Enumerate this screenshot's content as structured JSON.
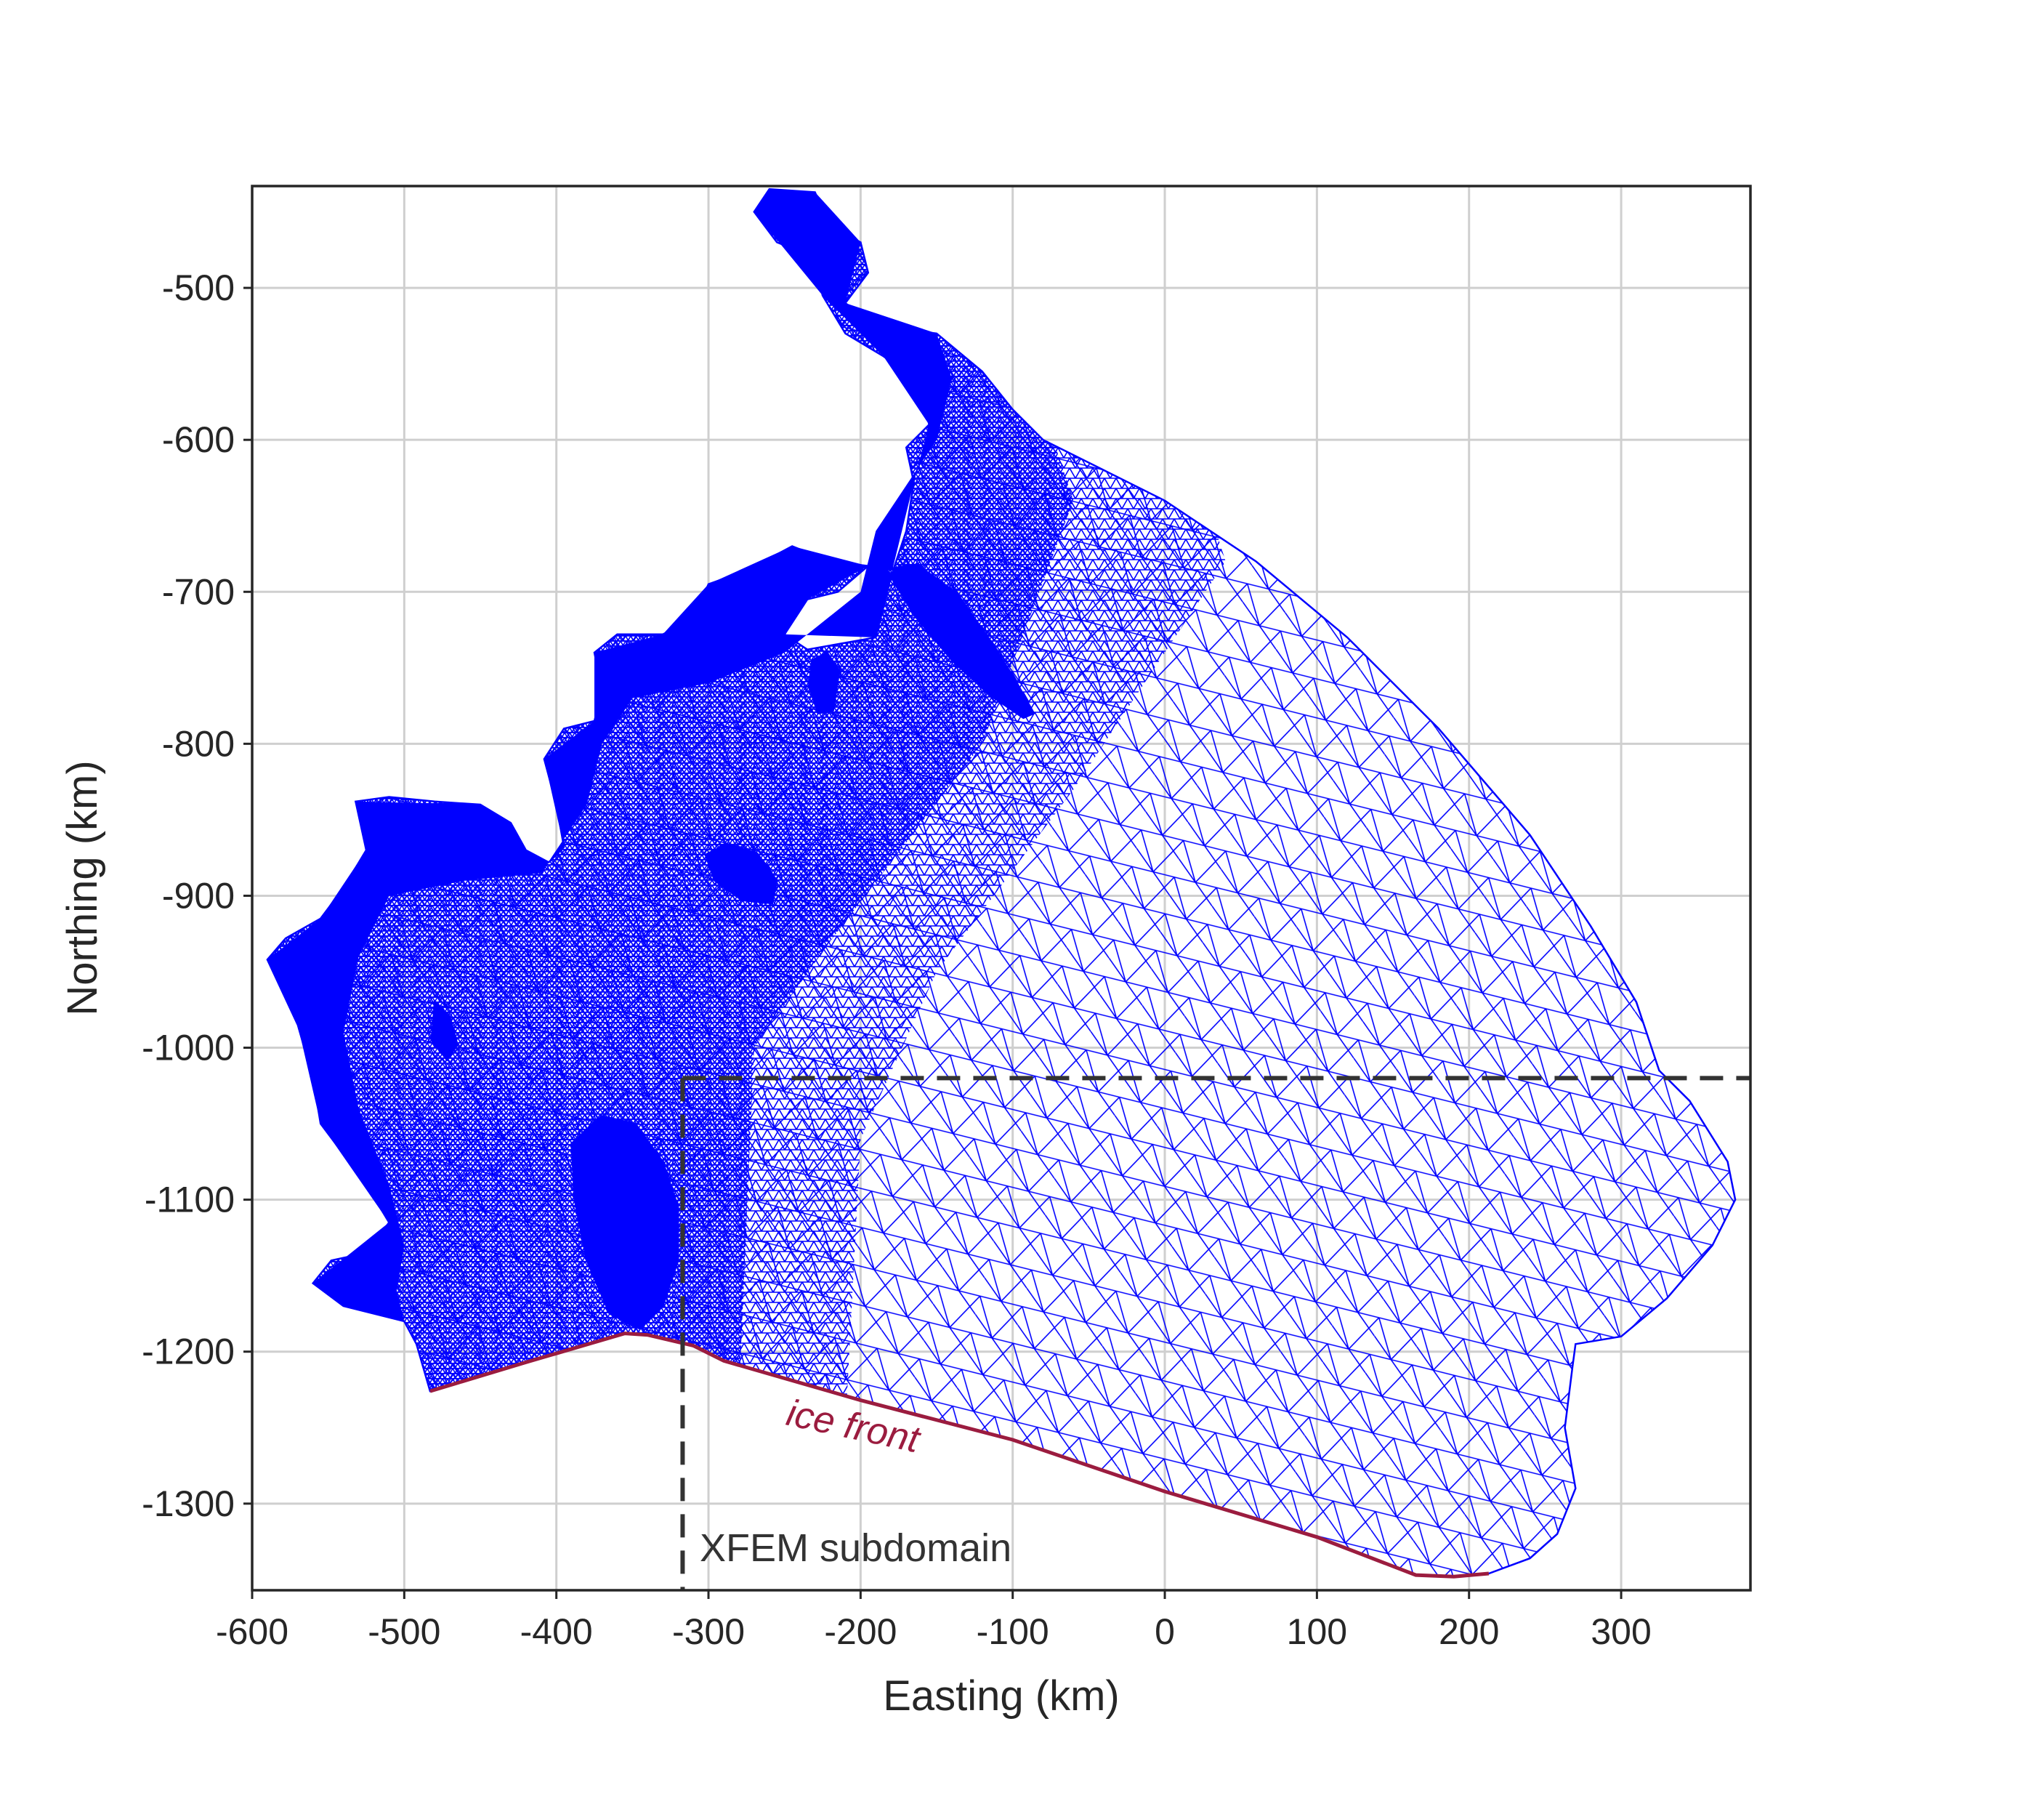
{
  "chart_data": {
    "type": "mesh",
    "xlabel": "Easting (km)",
    "ylabel": "Northing (km)",
    "xlim": [
      -600,
      385
    ],
    "ylim": [
      -1357,
      -433
    ],
    "xticks": [
      -600,
      -500,
      -400,
      -300,
      -200,
      -100,
      0,
      100,
      200,
      300
    ],
    "yticks": [
      -500,
      -600,
      -700,
      -800,
      -900,
      -1000,
      -1100,
      -1200,
      -1300
    ],
    "grid": true,
    "mesh_color": "#0000ff",
    "ice_front": {
      "label": "ice front",
      "color": "#9b1c3f",
      "points": [
        [
          -483,
          -1226
        ],
        [
          -420,
          -1207
        ],
        [
          -355,
          -1188
        ],
        [
          -340,
          -1189
        ],
        [
          -310,
          -1196
        ],
        [
          -290,
          -1206
        ],
        [
          -200,
          -1232
        ],
        [
          -100,
          -1258
        ],
        [
          0,
          -1292
        ],
        [
          100,
          -1322
        ],
        [
          165,
          -1347
        ],
        [
          190,
          -1348
        ],
        [
          213,
          -1346
        ]
      ]
    },
    "xfem_subdomain": {
      "label": "XFEM subdomain",
      "x": -317,
      "y": -1020,
      "color": "#333333"
    },
    "domain_outline": [
      [
        -483,
        -1226
      ],
      [
        -492,
        -1195
      ],
      [
        -500,
        -1180
      ],
      [
        -540,
        -1170
      ],
      [
        -560,
        -1155
      ],
      [
        -548,
        -1140
      ],
      [
        -525,
        -1135
      ],
      [
        -510,
        -1115
      ],
      [
        -525,
        -1090
      ],
      [
        -555,
        -1050
      ],
      [
        -560,
        -1020
      ],
      [
        -570,
        -985
      ],
      [
        -590,
        -942
      ],
      [
        -578,
        -928
      ],
      [
        -555,
        -915
      ],
      [
        -540,
        -895
      ],
      [
        -525,
        -870
      ],
      [
        -532,
        -838
      ],
      [
        -510,
        -835
      ],
      [
        -480,
        -838
      ],
      [
        -450,
        -840
      ],
      [
        -430,
        -852
      ],
      [
        -420,
        -870
      ],
      [
        -405,
        -878
      ],
      [
        -395,
        -868
      ],
      [
        -400,
        -840
      ],
      [
        -408,
        -810
      ],
      [
        -395,
        -790
      ],
      [
        -375,
        -785
      ],
      [
        -370,
        -765
      ],
      [
        -375,
        -740
      ],
      [
        -360,
        -728
      ],
      [
        -330,
        -728
      ],
      [
        -310,
        -718
      ],
      [
        -300,
        -695
      ],
      [
        -275,
        -686
      ],
      [
        -245,
        -670
      ],
      [
        -220,
        -680
      ],
      [
        -195,
        -683
      ],
      [
        -215,
        -700
      ],
      [
        -235,
        -705
      ],
      [
        -250,
        -728
      ],
      [
        -235,
        -738
      ],
      [
        -190,
        -730
      ],
      [
        -180,
        -690
      ],
      [
        -170,
        -660
      ],
      [
        -165,
        -628
      ],
      [
        -170,
        -605
      ],
      [
        -155,
        -590
      ],
      [
        -160,
        -563
      ],
      [
        -185,
        -545
      ],
      [
        -210,
        -530
      ],
      [
        -225,
        -505
      ],
      [
        -230,
        -480
      ],
      [
        -255,
        -470
      ],
      [
        -270,
        -450
      ],
      [
        -260,
        -435
      ],
      [
        -230,
        -437
      ],
      [
        -220,
        -460
      ],
      [
        -200,
        -470
      ],
      [
        -195,
        -490
      ],
      [
        -210,
        -510
      ],
      [
        -190,
        -525
      ],
      [
        -150,
        -530
      ],
      [
        -120,
        -555
      ],
      [
        -100,
        -580
      ],
      [
        -80,
        -600
      ],
      [
        -40,
        -620
      ],
      [
        0,
        -640
      ],
      [
        60,
        -680
      ],
      [
        120,
        -730
      ],
      [
        180,
        -790
      ],
      [
        240,
        -860
      ],
      [
        280,
        -920
      ],
      [
        310,
        -970
      ],
      [
        325,
        -1015
      ],
      [
        345,
        -1035
      ],
      [
        370,
        -1075
      ],
      [
        375,
        -1100
      ],
      [
        360,
        -1130
      ],
      [
        330,
        -1165
      ],
      [
        300,
        -1190
      ],
      [
        270,
        -1195
      ],
      [
        268,
        -1210
      ],
      [
        263,
        -1250
      ],
      [
        270,
        -1290
      ],
      [
        258,
        -1320
      ],
      [
        240,
        -1336
      ],
      [
        213,
        -1346
      ],
      [
        190,
        -1348
      ],
      [
        165,
        -1347
      ],
      [
        100,
        -1322
      ],
      [
        0,
        -1292
      ],
      [
        -100,
        -1258
      ],
      [
        -200,
        -1232
      ],
      [
        -290,
        -1206
      ],
      [
        -310,
        -1196
      ],
      [
        -340,
        -1189
      ],
      [
        -355,
        -1188
      ],
      [
        -420,
        -1207
      ]
    ],
    "holes": [
      [
        [
          -390,
          -1063
        ],
        [
          -370,
          -1045
        ],
        [
          -348,
          -1050
        ],
        [
          -330,
          -1075
        ],
        [
          -320,
          -1105
        ],
        [
          -320,
          -1140
        ],
        [
          -330,
          -1170
        ],
        [
          -345,
          -1185
        ],
        [
          -365,
          -1175
        ],
        [
          -380,
          -1140
        ],
        [
          -388,
          -1100
        ]
      ],
      [
        [
          -302,
          -873
        ],
        [
          -288,
          -866
        ],
        [
          -268,
          -872
        ],
        [
          -255,
          -890
        ],
        [
          -258,
          -905
        ],
        [
          -278,
          -903
        ],
        [
          -296,
          -890
        ]
      ],
      [
        [
          -232,
          -745
        ],
        [
          -222,
          -740
        ],
        [
          -214,
          -752
        ],
        [
          -218,
          -778
        ],
        [
          -228,
          -780
        ],
        [
          -234,
          -762
        ]
      ],
      [
        [
          -183,
          -685
        ],
        [
          -163,
          -682
        ],
        [
          -138,
          -700
        ],
        [
          -120,
          -725
        ],
        [
          -100,
          -755
        ],
        [
          -86,
          -780
        ],
        [
          -93,
          -783
        ],
        [
          -115,
          -768
        ],
        [
          -140,
          -745
        ],
        [
          -165,
          -715
        ]
      ],
      [
        [
          -480,
          -970
        ],
        [
          -470,
          -980
        ],
        [
          -465,
          -998
        ],
        [
          -472,
          -1008
        ],
        [
          -482,
          -995
        ]
      ]
    ]
  }
}
